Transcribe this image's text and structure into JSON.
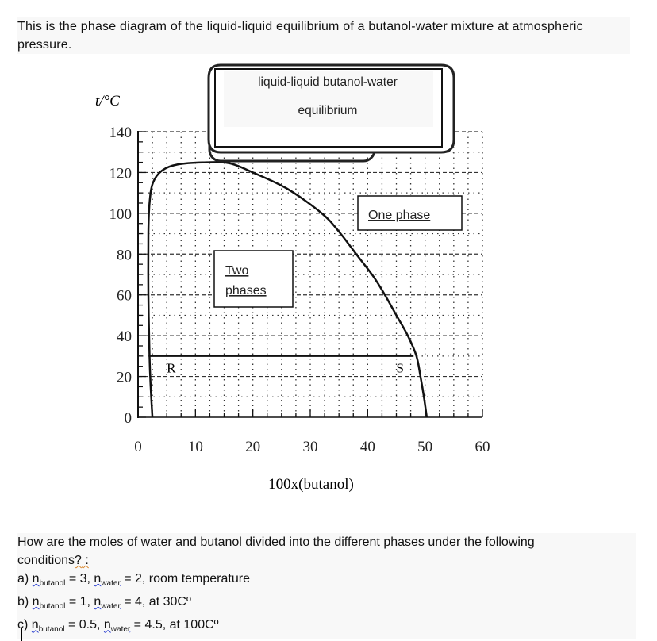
{
  "intro_text": "This is the phase diagram of the liquid-liquid equilibrium of a butanol-water mixture at atmospheric pressure.",
  "chart_data": {
    "type": "line",
    "title": "liquid-liquid butanol-water equilibrium",
    "xlabel": "100x(butanol)",
    "ylabel": "t/°C",
    "xlim": [
      0,
      60
    ],
    "ylim": [
      0,
      140
    ],
    "xticks": [
      "0",
      "10",
      "20",
      "30",
      "40",
      "50",
      "60"
    ],
    "yticks": [
      "0",
      "20",
      "40",
      "60",
      "80",
      "100",
      "120",
      "140"
    ],
    "grid": true,
    "coexistence_curve": {
      "x": [
        2.5,
        2.2,
        2.0,
        1.8,
        1.8,
        2.0,
        2.6,
        4.2,
        7,
        12,
        16,
        20,
        26,
        32,
        35,
        38,
        41,
        43,
        45,
        47,
        48.5,
        49.2,
        49.8,
        50.3
      ],
      "y": [
        0,
        15,
        30,
        60,
        90,
        105,
        115,
        121,
        124,
        125,
        124.5,
        120,
        112,
        100,
        91,
        80,
        69,
        60,
        50,
        40,
        30,
        20,
        10,
        0
      ]
    },
    "tie_line": {
      "t": 30,
      "x": [
        2,
        48
      ]
    },
    "annotations": [
      {
        "text": "R",
        "x": 5,
        "y": 22
      },
      {
        "text": "S",
        "x": 45,
        "y": 22
      },
      {
        "text": "Two phases",
        "x": 17,
        "y": 70
      },
      {
        "text": "One phase",
        "x": 46,
        "y": 100
      }
    ]
  },
  "question": {
    "line1a": "How are the moles of water and butanol divided into the different phases under the following",
    "line1b": "conditions",
    "line1c": "?",
    "line1d": " :",
    "items": [
      {
        "prefix": "a) ",
        "n1": "n",
        "s1": "butanol",
        "v1": " = 3, ",
        "n2": "n",
        "s2": "water",
        "v2": " = 2, room temperature"
      },
      {
        "prefix": "b) ",
        "n1": "n",
        "s1": "butanol",
        "v1": " = 1, ",
        "n2": "n",
        "s2": "water",
        "v2": " = 4, at 30Cº"
      },
      {
        "prefix": "c) ",
        "n1": "n",
        "s1": "butanol",
        "v1": " = 0.5, ",
        "n2": "n",
        "s2": "water",
        "v2": " = 4.5, at 100Cº"
      }
    ]
  }
}
